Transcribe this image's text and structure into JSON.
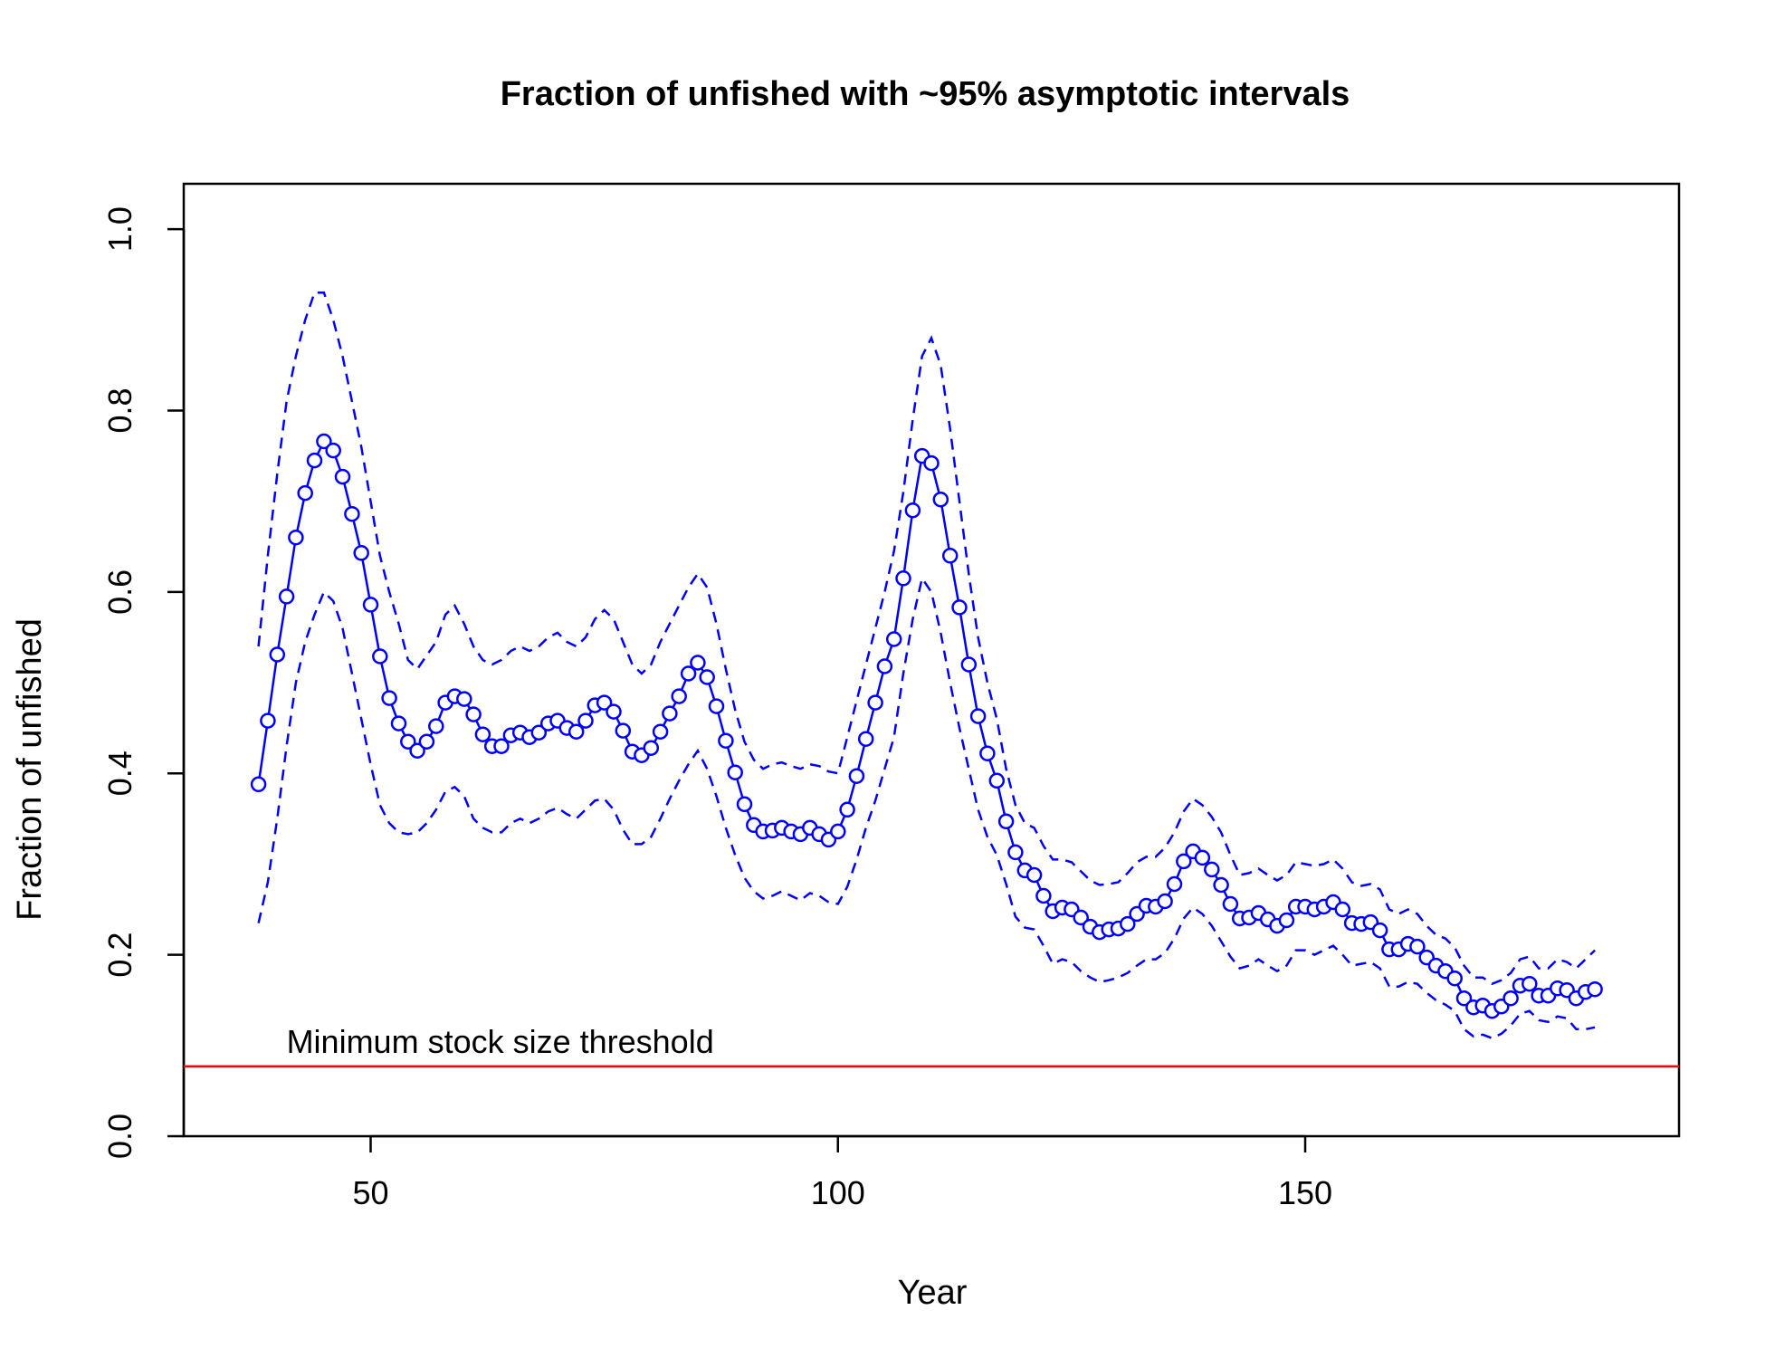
{
  "chart_data": {
    "type": "line",
    "title": "Fraction of unfished with ~95% asymptotic intervals",
    "xlabel": "Year",
    "ylabel": "Fraction of unfished",
    "xlim": [
      30,
      190
    ],
    "ylim": [
      0,
      1.05
    ],
    "x_ticks": [
      50,
      100,
      150
    ],
    "y_ticks": [
      0.0,
      0.2,
      0.4,
      0.6,
      0.8,
      1.0
    ],
    "y_tick_labels": [
      "0.0",
      "0.2",
      "0.4",
      "0.6",
      "0.8",
      "1.0"
    ],
    "grid": false,
    "x": [
      38,
      39,
      40,
      41,
      42,
      43,
      44,
      45,
      46,
      47,
      48,
      49,
      50,
      51,
      52,
      53,
      54,
      55,
      56,
      57,
      58,
      59,
      60,
      61,
      62,
      63,
      64,
      65,
      66,
      67,
      68,
      69,
      70,
      71,
      72,
      73,
      74,
      75,
      76,
      77,
      78,
      79,
      80,
      81,
      82,
      83,
      84,
      85,
      86,
      87,
      88,
      89,
      90,
      91,
      92,
      93,
      94,
      95,
      96,
      97,
      98,
      99,
      100,
      101,
      102,
      103,
      104,
      105,
      106,
      107,
      108,
      109,
      110,
      111,
      112,
      113,
      114,
      115,
      116,
      117,
      118,
      119,
      120,
      121,
      122,
      123,
      124,
      125,
      126,
      127,
      128,
      129,
      130,
      131,
      132,
      133,
      134,
      135,
      136,
      137,
      138,
      139,
      140,
      141,
      142,
      143,
      144,
      145,
      146,
      147,
      148,
      149,
      150,
      151,
      152,
      153,
      154,
      155,
      156,
      157,
      158,
      159,
      160,
      161,
      162,
      163,
      164,
      165,
      166,
      167,
      168,
      169,
      170,
      171,
      172,
      173,
      174,
      175,
      176,
      177,
      178,
      179,
      180,
      181
    ],
    "series": [
      {
        "role": "estimate",
        "color": "#0000ff",
        "style": "solid with open circles",
        "values": [
          0.388,
          0.458,
          0.531,
          0.595,
          0.66,
          0.709,
          0.745,
          0.766,
          0.756,
          0.727,
          0.686,
          0.643,
          0.586,
          0.529,
          0.483,
          0.455,
          0.435,
          0.425,
          0.435,
          0.452,
          0.478,
          0.485,
          0.482,
          0.465,
          0.443,
          0.43,
          0.43,
          0.442,
          0.445,
          0.44,
          0.445,
          0.455,
          0.458,
          0.45,
          0.446,
          0.458,
          0.475,
          0.478,
          0.468,
          0.447,
          0.424,
          0.42,
          0.428,
          0.446,
          0.466,
          0.485,
          0.51,
          0.522,
          0.506,
          0.474,
          0.436,
          0.401,
          0.366,
          0.343,
          0.336,
          0.337,
          0.34,
          0.336,
          0.333,
          0.34,
          0.333,
          0.327,
          0.336,
          0.36,
          0.397,
          0.438,
          0.478,
          0.518,
          0.548,
          0.615,
          0.69,
          0.75,
          0.742,
          0.702,
          0.64,
          0.583,
          0.52,
          0.463,
          0.422,
          0.392,
          0.347,
          0.313,
          0.293,
          0.288,
          0.265,
          0.248,
          0.252,
          0.25,
          0.241,
          0.231,
          0.225,
          0.228,
          0.229,
          0.234,
          0.245,
          0.254,
          0.253,
          0.259,
          0.278,
          0.303,
          0.314,
          0.307,
          0.294,
          0.277,
          0.256,
          0.24,
          0.241,
          0.246,
          0.239,
          0.232,
          0.238,
          0.253,
          0.253,
          0.25,
          0.253,
          0.258,
          0.25,
          0.235,
          0.234,
          0.236,
          0.227,
          0.206,
          0.206,
          0.212,
          0.209,
          0.197,
          0.188,
          0.182,
          0.174,
          0.152,
          0.142,
          0.144,
          0.138,
          0.143,
          0.152,
          0.166,
          0.168,
          0.155,
          0.155,
          0.163,
          0.161,
          0.152,
          0.159,
          0.162
        ]
      },
      {
        "role": "upper 95% interval",
        "color": "#0000ff",
        "style": "dashed",
        "values": [
          0.54,
          0.64,
          0.73,
          0.81,
          0.86,
          0.9,
          0.93,
          0.93,
          0.9,
          0.86,
          0.81,
          0.76,
          0.7,
          0.64,
          0.6,
          0.565,
          0.525,
          0.515,
          0.53,
          0.545,
          0.575,
          0.585,
          0.565,
          0.54,
          0.525,
          0.52,
          0.525,
          0.535,
          0.54,
          0.535,
          0.54,
          0.55,
          0.555,
          0.545,
          0.54,
          0.55,
          0.57,
          0.58,
          0.57,
          0.545,
          0.52,
          0.51,
          0.52,
          0.545,
          0.565,
          0.585,
          0.605,
          0.62,
          0.605,
          0.565,
          0.515,
          0.47,
          0.435,
          0.415,
          0.405,
          0.41,
          0.412,
          0.408,
          0.405,
          0.41,
          0.408,
          0.402,
          0.4,
          0.44,
          0.48,
          0.52,
          0.56,
          0.6,
          0.645,
          0.71,
          0.79,
          0.86,
          0.88,
          0.85,
          0.78,
          0.7,
          0.62,
          0.55,
          0.5,
          0.46,
          0.405,
          0.365,
          0.345,
          0.34,
          0.32,
          0.305,
          0.305,
          0.302,
          0.292,
          0.282,
          0.277,
          0.278,
          0.28,
          0.29,
          0.302,
          0.308,
          0.308,
          0.318,
          0.335,
          0.358,
          0.372,
          0.365,
          0.352,
          0.335,
          0.31,
          0.288,
          0.29,
          0.295,
          0.288,
          0.282,
          0.288,
          0.302,
          0.3,
          0.298,
          0.3,
          0.305,
          0.295,
          0.28,
          0.276,
          0.278,
          0.272,
          0.25,
          0.245,
          0.25,
          0.245,
          0.232,
          0.222,
          0.218,
          0.208,
          0.188,
          0.175,
          0.175,
          0.168,
          0.172,
          0.18,
          0.195,
          0.198,
          0.185,
          0.185,
          0.195,
          0.192,
          0.185,
          0.195,
          0.205
        ]
      },
      {
        "role": "lower 95% interval",
        "color": "#0000ff",
        "style": "dashed",
        "values": [
          0.235,
          0.28,
          0.35,
          0.43,
          0.5,
          0.545,
          0.575,
          0.6,
          0.59,
          0.56,
          0.51,
          0.46,
          0.41,
          0.365,
          0.345,
          0.335,
          0.333,
          0.335,
          0.345,
          0.36,
          0.38,
          0.385,
          0.375,
          0.35,
          0.34,
          0.335,
          0.335,
          0.345,
          0.35,
          0.345,
          0.35,
          0.358,
          0.362,
          0.355,
          0.35,
          0.36,
          0.37,
          0.372,
          0.36,
          0.338,
          0.322,
          0.322,
          0.33,
          0.35,
          0.372,
          0.392,
          0.41,
          0.425,
          0.405,
          0.375,
          0.34,
          0.31,
          0.285,
          0.27,
          0.262,
          0.265,
          0.27,
          0.265,
          0.26,
          0.268,
          0.265,
          0.258,
          0.256,
          0.275,
          0.305,
          0.34,
          0.37,
          0.405,
          0.44,
          0.51,
          0.57,
          0.615,
          0.6,
          0.555,
          0.5,
          0.45,
          0.405,
          0.36,
          0.33,
          0.31,
          0.278,
          0.242,
          0.23,
          0.228,
          0.21,
          0.19,
          0.195,
          0.192,
          0.182,
          0.175,
          0.17,
          0.172,
          0.175,
          0.18,
          0.188,
          0.195,
          0.195,
          0.202,
          0.218,
          0.24,
          0.252,
          0.245,
          0.232,
          0.215,
          0.198,
          0.185,
          0.188,
          0.195,
          0.188,
          0.182,
          0.188,
          0.205,
          0.205,
          0.2,
          0.205,
          0.21,
          0.2,
          0.188,
          0.19,
          0.192,
          0.185,
          0.165,
          0.165,
          0.17,
          0.168,
          0.158,
          0.15,
          0.145,
          0.138,
          0.118,
          0.11,
          0.112,
          0.108,
          0.113,
          0.122,
          0.135,
          0.138,
          0.128,
          0.126,
          0.132,
          0.13,
          0.118,
          0.118,
          0.12
        ]
      }
    ],
    "reference_line": {
      "y": 0.077,
      "color": "#ff0000",
      "label": "Minimum stock size threshold"
    }
  }
}
